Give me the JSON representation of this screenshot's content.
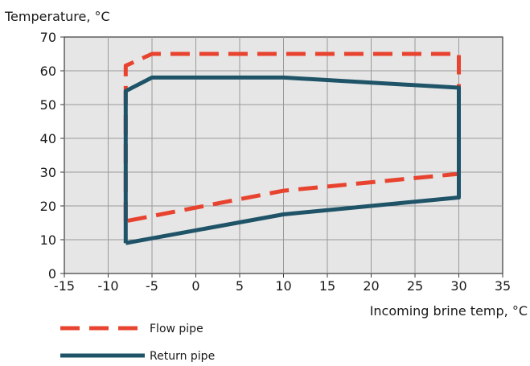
{
  "chart_data": {
    "type": "line",
    "ylabel": "Temperature, °C",
    "xlabel": "Incoming brine temp, °C",
    "xlim": [
      -15,
      35
    ],
    "ylim": [
      0,
      70
    ],
    "x_ticks": [
      "-15",
      "-10",
      "-5",
      "0",
      "5",
      "10",
      "15",
      "20",
      "25",
      "30",
      "35"
    ],
    "y_ticks": [
      "0",
      "10",
      "20",
      "30",
      "40",
      "50",
      "60",
      "70"
    ],
    "grid": true,
    "legend_position": "bottom-left",
    "series": [
      {
        "name": "Flow pipe",
        "color": "#e8432f",
        "style": "dashed",
        "points": [
          [
            -8,
            15.5
          ],
          [
            -8,
            61.5
          ],
          [
            -5,
            65
          ],
          [
            30,
            65
          ],
          [
            30,
            29.5
          ],
          [
            10,
            24.5
          ],
          [
            -8,
            15.5
          ]
        ]
      },
      {
        "name": "Return pipe",
        "color": "#1f5468",
        "style": "solid",
        "points": [
          [
            -8,
            9
          ],
          [
            -8,
            54
          ],
          [
            -5,
            58
          ],
          [
            10,
            58
          ],
          [
            30,
            55
          ],
          [
            30,
            22.5
          ],
          [
            10,
            17.5
          ],
          [
            -8,
            9
          ]
        ]
      }
    ]
  }
}
